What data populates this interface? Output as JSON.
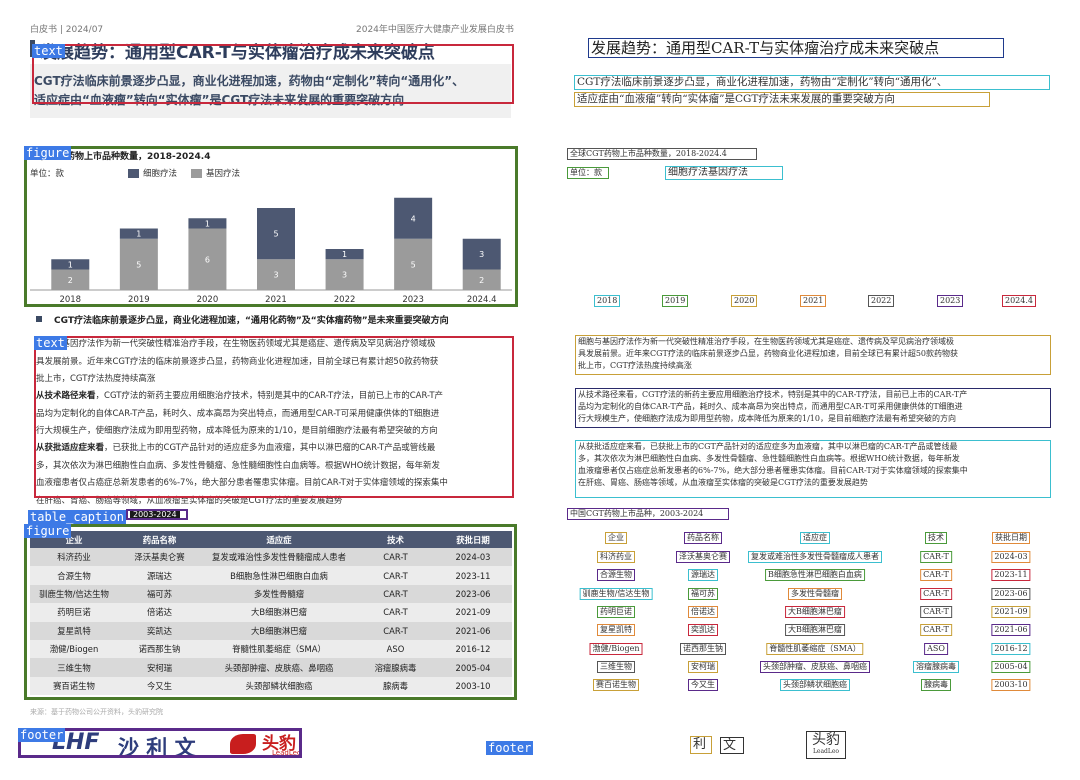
{
  "header": {
    "left": "白皮书 | 2024/07",
    "right": "2024年中国医疗大健康产业发展白皮书"
  },
  "title": "发展趋势：通用型CAR-T与实体瘤治疗成未来突破点",
  "summary": {
    "line1": "CGT疗法临床前景逐步凸显，商业化进程加速，药物由“定制化”转向“通用化”、",
    "line2": "适应症由“血液瘤”转向“实体瘤”是CGT疗法未来发展的重要突破方向"
  },
  "chart_data": {
    "type": "bar",
    "stacked": true,
    "title": "全球CGT药物上市品种数量，2018-2024.4",
    "unit_label": "单位：款",
    "categories": [
      "2018",
      "2019",
      "2020",
      "2021",
      "2022",
      "2023",
      "2024.4"
    ],
    "series": [
      {
        "name": "细胞疗法",
        "values": [
          1,
          1,
          1,
          5,
          1,
          4,
          3
        ],
        "color": "#4d5872"
      },
      {
        "name": "基因疗法",
        "values": [
          2,
          5,
          6,
          3,
          3,
          5,
          2
        ],
        "color": "#9b9b9b"
      }
    ],
    "legend_position": "top",
    "grid": false
  },
  "bullet_heading": "CGT疗法临床前景逐步凸显，商业化进程加速，“通用化药物”及“实体瘤药物”是未来重要突破方向",
  "paragraphs": {
    "p1": [
      "细胞与基因疗法作为新一代突破性精准治疗手段，在生物医药领域尤其是癌症、遗传病及罕见病治疗领域极",
      "具发展前景。近年来CGT疗法的临床前景逐步凸显，药物商业化进程加速，目前全球已有累计超50款药物获",
      "批上市，CGT疗法热度持续高涨"
    ],
    "p2_lead": "从技术路径来看",
    "p2": [
      "，CGT疗法的新药主要应用细胞治疗技术，特别是其中的CAR-T疗法，目前已上市的CAR-T产",
      "品均为定制化的自体CAR-T产品，耗时久、成本高昂为突出特点，而通用型CAR-T可采用健康供体的T细胞进",
      "行大规模生产，使细胞疗法成为即用型药物，成本降低为原来的1/10，是目前细胞疗法最有希望突破的方向"
    ],
    "p3_lead": "从获批适应症来看",
    "p3": [
      "，已获批上市的CGT产品针对的适应症多为血液瘤，其中以淋巴瘤的CAR-T产品或管线最",
      "多，其次依次为淋巴细胞性白血病、多发性骨髓瘤、急性髓细胞性白血病等。根据WHO统计数据，每年新发",
      "血液瘤患者仅占癌症总新发患者的6%-7%，绝大部分患者罹患实体瘤。目前CAR-T对于实体瘤领域的探索集中",
      "在肝癌、胃癌、肠癌等领域，从血液瘤至实体瘤的突破是CGT疗法的重要发展趋势"
    ]
  },
  "table": {
    "caption": "中国CGT药物上市品种，2003-2024",
    "caption_visible": "2003-2024",
    "headers": [
      "企业",
      "药品名称",
      "适应症",
      "技术",
      "获批日期"
    ],
    "rows": [
      [
        "科济药业",
        "泽沃基奥仑赛",
        "复发或难治性多发性骨髓瘤成人患者",
        "CAR-T",
        "2024-03"
      ],
      [
        "合源生物",
        "源瑞达",
        "B细胞急性淋巴细胞白血病",
        "CAR-T",
        "2023-11"
      ],
      [
        "驯鹿生物/信达生物",
        "福可苏",
        "多发性骨髓瘤",
        "CAR-T",
        "2023-06"
      ],
      [
        "药明巨诺",
        "倍诺达",
        "大B细胞淋巴瘤",
        "CAR-T",
        "2021-09"
      ],
      [
        "复星凯特",
        "奕凯达",
        "大B细胞淋巴瘤",
        "CAR-T",
        "2021-06"
      ],
      [
        "渤健/Biogen",
        "诺西那生钠",
        "脊髓性肌萎缩症（SMA）",
        "ASO",
        "2016-12"
      ],
      [
        "三维生物",
        "安柯瑞",
        "头颈部肿瘤、皮肤癌、鼻咽癌",
        "溶瘤腺病毒",
        "2005-04"
      ],
      [
        "赛百诺生物",
        "今又生",
        "头颈部鳞状细胞癌",
        "腺病毒",
        "2003-10"
      ]
    ]
  },
  "source": "来源：基于药物公司公开资料，头豹研究院",
  "footer": {
    "logo1": "LHF",
    "logo2": "沙 利 文",
    "logo3": "头豹",
    "logo3_sub": "LeadLeo"
  },
  "annotations": {
    "text": "text",
    "figure": "figure",
    "table_caption": "table_caption",
    "footer": "footer"
  }
}
